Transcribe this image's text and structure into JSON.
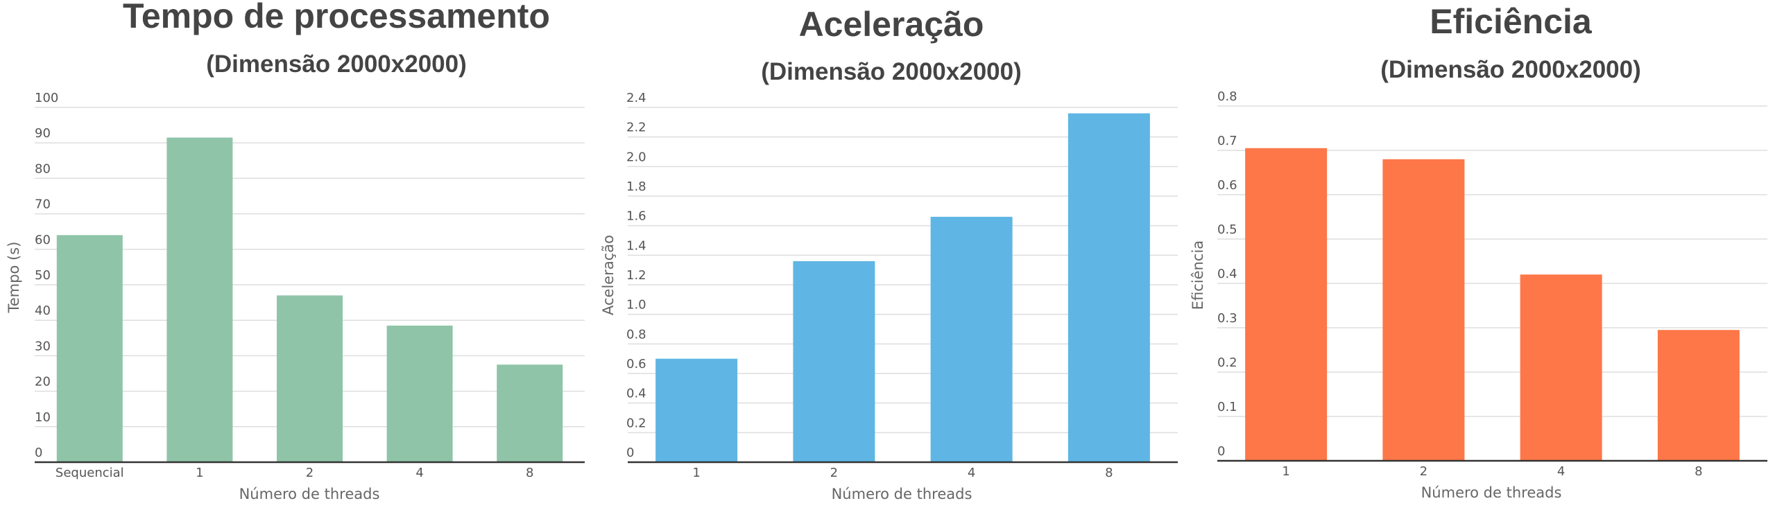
{
  "chart_data": [
    {
      "type": "bar",
      "title": "Tempo de processamento",
      "subtitle": "(Dimensão 2000x2000)",
      "xlabel": "Número de threads",
      "ylabel": "Tempo (s)",
      "categories": [
        "Sequencial",
        "1",
        "2",
        "4",
        "8"
      ],
      "values": [
        64,
        91.5,
        47,
        38.5,
        27.5
      ],
      "ylim": [
        0,
        100
      ],
      "yticks": [
        "0",
        "10",
        "20",
        "30",
        "40",
        "50",
        "60",
        "70",
        "80",
        "90",
        "100"
      ],
      "grid": true,
      "legend": "none",
      "color": "#8fc4a8"
    },
    {
      "type": "bar",
      "title": "Aceleração",
      "subtitle": "(Dimensão 2000x2000)",
      "xlabel": "Número de threads",
      "ylabel": "Aceleração",
      "categories": [
        "1",
        "2",
        "4",
        "8"
      ],
      "values": [
        0.7,
        1.36,
        1.66,
        2.36
      ],
      "ylim": [
        0,
        2.4
      ],
      "yticks": [
        "0",
        "0.2",
        "0.4",
        "0.6",
        "0.8",
        "1.0",
        "1.2",
        "1.4",
        "1.6",
        "1.8",
        "2.0",
        "2.2",
        "2.4"
      ],
      "grid": true,
      "legend": "none",
      "color": "#5fb6e4"
    },
    {
      "type": "bar",
      "title": "Eficiência",
      "subtitle": "(Dimensão 2000x2000)",
      "xlabel": "Número de threads",
      "ylabel": "Eficiência",
      "categories": [
        "1",
        "2",
        "4",
        "8"
      ],
      "values": [
        0.705,
        0.68,
        0.42,
        0.295
      ],
      "ylim": [
        0,
        0.8
      ],
      "yticks": [
        "0",
        "0.1",
        "0.2",
        "0.3",
        "0.4",
        "0.5",
        "0.6",
        "0.7",
        "0.8"
      ],
      "grid": true,
      "legend": "none",
      "color": "#fe7748"
    }
  ]
}
